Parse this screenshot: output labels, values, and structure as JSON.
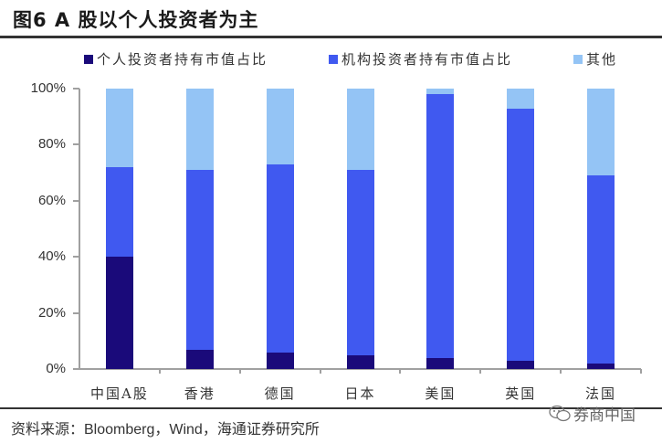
{
  "title": "图6  A 股以个人投资者为主",
  "legend": [
    {
      "label": "个人投资者持有市值占比",
      "color": "#1a0a7a"
    },
    {
      "label": "机构投资者持有市值占比",
      "color": "#4059f0"
    },
    {
      "label": "其他",
      "color": "#94c4f5"
    }
  ],
  "source": "资料来源：Bloomberg，Wind，海通证券研究所",
  "watermark": "券商中国",
  "chart_data": {
    "type": "bar",
    "stacked": true,
    "title": "图6  A 股以个人投资者为主",
    "xlabel": "",
    "ylabel": "",
    "ylim": [
      0,
      100
    ],
    "yticks": [
      "0%",
      "20%",
      "40%",
      "60%",
      "80%",
      "100%"
    ],
    "grid": false,
    "legend_position": "top",
    "categories": [
      "中国A股",
      "香港",
      "德国",
      "日本",
      "美国",
      "英国",
      "法国"
    ],
    "series": [
      {
        "name": "个人投资者持有市值占比",
        "color": "#1a0a7a",
        "values": [
          40,
          7,
          6,
          5,
          4,
          3,
          2
        ]
      },
      {
        "name": "机构投资者持有市值占比",
        "color": "#4059f0",
        "values": [
          32,
          64,
          67,
          66,
          94,
          90,
          67
        ]
      },
      {
        "name": "其他",
        "color": "#94c4f5",
        "values": [
          28,
          29,
          27,
          29,
          2,
          7,
          31
        ]
      }
    ]
  }
}
